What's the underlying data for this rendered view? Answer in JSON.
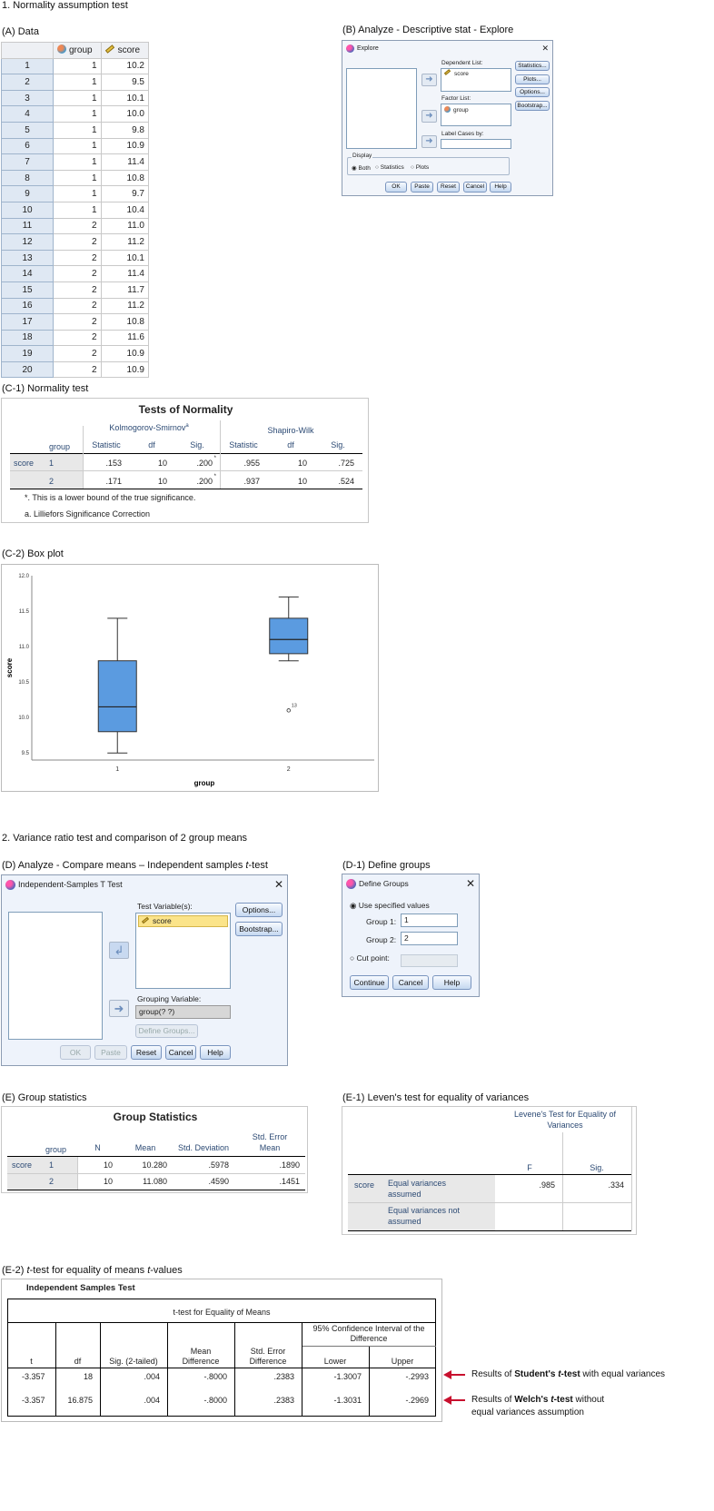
{
  "section1": {
    "title": "1. Normality assumption test"
  },
  "dataA": {
    "caption": "(A) Data",
    "col_group": "group",
    "col_score": "score",
    "rows": [
      {
        "n": "1",
        "g": "1",
        "s": "10.2"
      },
      {
        "n": "2",
        "g": "1",
        "s": "9.5"
      },
      {
        "n": "3",
        "g": "1",
        "s": "10.1"
      },
      {
        "n": "4",
        "g": "1",
        "s": "10.0"
      },
      {
        "n": "5",
        "g": "1",
        "s": "9.8"
      },
      {
        "n": "6",
        "g": "1",
        "s": "10.9"
      },
      {
        "n": "7",
        "g": "1",
        "s": "11.4"
      },
      {
        "n": "8",
        "g": "1",
        "s": "10.8"
      },
      {
        "n": "9",
        "g": "1",
        "s": "9.7"
      },
      {
        "n": "10",
        "g": "1",
        "s": "10.4"
      },
      {
        "n": "11",
        "g": "2",
        "s": "11.0"
      },
      {
        "n": "12",
        "g": "2",
        "s": "11.2"
      },
      {
        "n": "13",
        "g": "2",
        "s": "10.1"
      },
      {
        "n": "14",
        "g": "2",
        "s": "11.4"
      },
      {
        "n": "15",
        "g": "2",
        "s": "11.7"
      },
      {
        "n": "16",
        "g": "2",
        "s": "11.2"
      },
      {
        "n": "17",
        "g": "2",
        "s": "10.8"
      },
      {
        "n": "18",
        "g": "2",
        "s": "11.6"
      },
      {
        "n": "19",
        "g": "2",
        "s": "10.9"
      },
      {
        "n": "20",
        "g": "2",
        "s": "10.9"
      }
    ]
  },
  "explore": {
    "caption": "(B) Analyze - Descriptive stat - Explore",
    "title": "Explore",
    "dependent_label": "Dependent List:",
    "dependent_item": "score",
    "factor_label": "Factor List:",
    "factor_item": "group",
    "label_cases": "Label Cases by:",
    "display_label": "Display",
    "radio_both": "Both",
    "radio_statistics": "Statistics",
    "radio_plots": "Plots",
    "btn_statistics": "Statistics...",
    "btn_plots": "Plots...",
    "btn_options": "Options...",
    "btn_bootstrap": "Bootstrap...",
    "btn_ok": "OK",
    "btn_paste": "Paste",
    "btn_reset": "Reset",
    "btn_cancel": "Cancel",
    "btn_help": "Help"
  },
  "normality": {
    "caption": "(C-1) Normality test",
    "title": "Tests of Normality",
    "ks": "Kolmogorov-Smirnov",
    "ks_sup": "a",
    "sw": "Shapiro-Wilk",
    "h_group": "group",
    "h_stat": "Statistic",
    "h_df": "df",
    "h_sig": "Sig.",
    "row_label": "score",
    "rows": [
      {
        "g": "1",
        "ks_stat": ".153",
        "ks_df": "10",
        "ks_sig": ".200",
        "sw_stat": ".955",
        "sw_df": "10",
        "sw_sig": ".725"
      },
      {
        "g": "2",
        "ks_stat": ".171",
        "ks_df": "10",
        "ks_sig": ".200",
        "sw_stat": ".937",
        "sw_df": "10",
        "sw_sig": ".524"
      }
    ],
    "star": "*",
    "note1": "*. This is a lower bound of the true significance.",
    "note2": "a. Lilliefors Significance Correction"
  },
  "boxplot_caption": "(C-2) Box plot",
  "chart_data": {
    "type": "box",
    "xlabel": "group",
    "ylabel": "score",
    "ylim": [
      9.4,
      12.0
    ],
    "yticks": [
      "9.5",
      "10.0",
      "10.5",
      "11.0",
      "11.5",
      "12.0"
    ],
    "categories": [
      "1",
      "2"
    ],
    "boxes": [
      {
        "category": "1",
        "min": 9.5,
        "q1": 9.8,
        "median": 10.15,
        "q3": 10.8,
        "max": 11.4
      },
      {
        "category": "2",
        "min": 10.8,
        "q1": 10.9,
        "median": 11.1,
        "q3": 11.4,
        "max": 11.7,
        "outlier": 10.1,
        "outlier_label": "13"
      }
    ],
    "color": "#5b9be0"
  },
  "section2": {
    "title": "2. Variance ratio test and comparison of 2 group means"
  },
  "ttestDlg": {
    "caption_pre": "(D) Analyze - Compare means – Independent samples ",
    "caption_t": "t",
    "caption_post": "-test",
    "title": "Independent-Samples T Test",
    "test_var_label": "Test Variable(s):",
    "test_var_item": "score",
    "grouping_label": "Grouping Variable:",
    "grouping_value": "group(? ?)",
    "btn_define": "Define Groups...",
    "btn_options": "Options...",
    "btn_bootstrap": "Bootstrap...",
    "btn_ok": "OK",
    "btn_paste": "Paste",
    "btn_reset": "Reset",
    "btn_cancel": "Cancel",
    "btn_help": "Help"
  },
  "defineGroups": {
    "caption": "(D-1) Define groups",
    "title": "Define Groups",
    "use_specified": "Use specified values",
    "group1_label": "Group 1:",
    "group1_value": "1",
    "group2_label": "Group 2:",
    "group2_value": "2",
    "cut_point": "Cut point:",
    "btn_continue": "Continue",
    "btn_cancel": "Cancel",
    "btn_help": "Help"
  },
  "groupStats": {
    "caption": "(E) Group statistics",
    "title": "Group Statistics",
    "h_group": "group",
    "h_n": "N",
    "h_mean": "Mean",
    "h_sd": "Std. Deviation",
    "h_se1": "Std. Error",
    "h_se2": "Mean",
    "row_label": "score",
    "rows": [
      {
        "g": "1",
        "n": "10",
        "mean": "10.280",
        "sd": ".5978",
        "se": ".1890"
      },
      {
        "g": "2",
        "n": "10",
        "mean": "11.080",
        "sd": ".4590",
        "se": ".1451"
      }
    ]
  },
  "levene": {
    "caption": "(E-1) Leven's test for equality of variances",
    "h1": "Levene's Test for Equality of",
    "h2": "Variances",
    "h_f": "F",
    "h_sig": "Sig.",
    "row_label": "score",
    "r1a": "Equal variances",
    "r1b": "assumed",
    "r2a": "Equal variances not",
    "r2b": "assumed",
    "f": ".985",
    "sig": ".334"
  },
  "ist": {
    "caption_pre": "(E-2) ",
    "caption_t": "t",
    "caption_post": "-test for equality of means ",
    "caption_t2": "t",
    "caption_post2": "-values",
    "title": "Independent Samples Test",
    "header": "t-test for Equality of Means",
    "ci1": "95% Confidence Interval of the",
    "ci2": "Difference",
    "h_t": "t",
    "h_df": "df",
    "h_sig": "Sig. (2-tailed)",
    "h_md1": "Mean",
    "h_md2": "Difference",
    "h_se1": "Std. Error",
    "h_se2": "Difference",
    "h_lower": "Lower",
    "h_upper": "Upper",
    "rows": [
      {
        "t": "-3.357",
        "df": "18",
        "sig": ".004",
        "md": "-.8000",
        "se": ".2383",
        "lo": "-1.3007",
        "up": "-.2993"
      },
      {
        "t": "-3.357",
        "df": "16.875",
        "sig": ".004",
        "md": "-.8000",
        "se": ".2383",
        "lo": "-1.3031",
        "up": "-.2969"
      }
    ]
  },
  "callouts": {
    "c1_pre": "Results of ",
    "c1_b": "Student's ",
    "c1_t": "t",
    "c1_b2": "-test",
    "c1_post": " with equal variances",
    "c2_pre": "Results of ",
    "c2_b": "Welch's ",
    "c2_t": "t",
    "c2_b2": "-test",
    "c2_post": " without",
    "c2_line2": "equal variances assumption",
    "arrow_color": "#c8102e"
  }
}
